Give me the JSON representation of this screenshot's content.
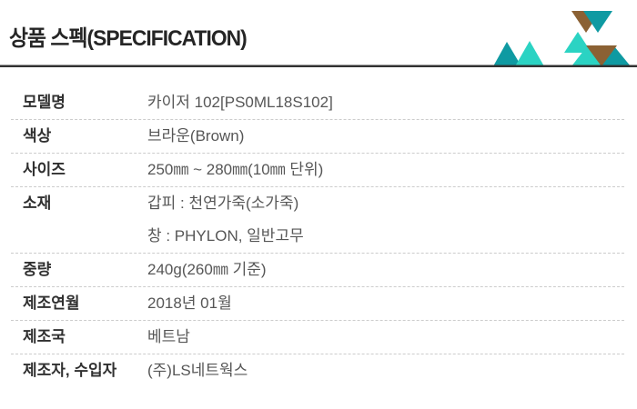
{
  "header": {
    "title": "상품 스펙(SPECIFICATION)"
  },
  "decoration": {
    "rule_color": "#323232",
    "triangle_colors": {
      "teal_dark": "#0F9AA2",
      "teal_light": "#2BD3C3",
      "brown": "#8B6134"
    }
  },
  "spec_table": {
    "rows": [
      {
        "label": "모델명",
        "values": [
          "카이저 102[PS0ML18S102]"
        ]
      },
      {
        "label": "색상",
        "values": [
          "브라운(Brown)"
        ]
      },
      {
        "label": "사이즈",
        "values": [
          "250㎜ ~ 280㎜(10㎜ 단위)"
        ]
      },
      {
        "label": "소재",
        "values": [
          "갑피 : 천연가죽(소가죽)",
          "창 : PHYLON, 일반고무"
        ]
      },
      {
        "label": "중량",
        "values": [
          "240g(260㎜ 기준)"
        ]
      },
      {
        "label": "제조연월",
        "values": [
          "2018년 01월"
        ]
      },
      {
        "label": "제조국",
        "values": [
          "베트남"
        ]
      },
      {
        "label": "제조자, 수입자",
        "values": [
          "(주)LS네트웍스"
        ]
      }
    ]
  }
}
